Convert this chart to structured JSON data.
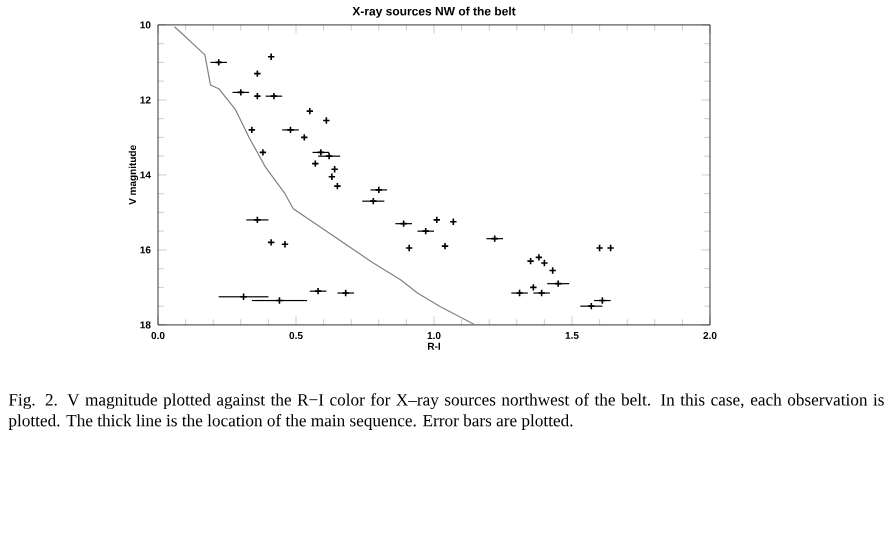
{
  "chart_data": {
    "type": "scatter",
    "title": "X-ray sources NW of the belt",
    "xlabel": "R-I",
    "ylabel": "V magnitude",
    "xlim": [
      0,
      2
    ],
    "xticks": [
      {
        "value": 0,
        "label": "0.0"
      },
      0.5,
      {
        "value": 1,
        "label": "1.0"
      },
      1.5,
      {
        "value": 2,
        "label": "2.0"
      }
    ],
    "ylim": [
      18,
      10
    ],
    "yticks": [
      10,
      12,
      14,
      16,
      18
    ],
    "grid": false,
    "series": [
      {
        "color": "#000000",
        "marker": "cross",
        "x": [
          0.22,
          0.41,
          0.36,
          0.3,
          0.36,
          0.42,
          0.55,
          0.61,
          0.34,
          0.48,
          0.53,
          0.38,
          0.59,
          0.62,
          0.57,
          0.64,
          0.63,
          0.65,
          0.8,
          0.36,
          0.41,
          0.46,
          0.78,
          0.89,
          0.91,
          0.31,
          0.44,
          0.58,
          0.68,
          0.97,
          1.01,
          1.04,
          1.07,
          1.22,
          1.35,
          1.38,
          1.4,
          1.43,
          1.45,
          1.31,
          1.36,
          1.39,
          1.57,
          1.61,
          1.6,
          1.64
        ],
        "values": [
          11.0,
          10.85,
          11.3,
          11.8,
          11.9,
          11.9,
          12.3,
          12.55,
          12.8,
          12.8,
          13.0,
          13.4,
          13.4,
          13.5,
          13.7,
          13.85,
          14.05,
          14.3,
          14.4,
          15.2,
          15.8,
          15.85,
          14.7,
          15.3,
          15.95,
          17.25,
          17.35,
          17.1,
          17.15,
          15.5,
          15.2,
          15.9,
          15.25,
          15.7,
          16.3,
          16.2,
          16.35,
          16.55,
          16.9,
          17.15,
          17.0,
          17.15,
          17.5,
          17.35,
          15.95,
          15.95
        ],
        "xerrors": [
          0.03,
          null,
          null,
          0.03,
          null,
          0.03,
          null,
          null,
          null,
          0.03,
          null,
          null,
          0.03,
          0.04,
          null,
          null,
          null,
          null,
          0.03,
          0.04,
          null,
          null,
          0.04,
          0.03,
          null,
          0.09,
          0.1,
          0.03,
          0.03,
          0.03,
          null,
          null,
          null,
          0.03,
          null,
          null,
          null,
          null,
          0.04,
          0.03,
          null,
          0.03,
          0.04,
          0.03,
          null,
          null
        ]
      },
      {
        "type": "line",
        "color": "#808080",
        "marker": "none",
        "x": [
          0.06,
          0.17,
          0.19,
          0.22,
          0.28,
          0.33,
          0.39,
          0.46,
          0.49,
          0.64,
          0.78,
          0.88,
          0.94,
          1.02,
          1.15
        ],
        "values": [
          10.05,
          10.8,
          11.6,
          11.7,
          12.25,
          13.0,
          13.8,
          14.5,
          14.9,
          15.65,
          16.35,
          16.8,
          17.15,
          17.5,
          18.0
        ]
      }
    ],
    "annotations": [
      "Fig. 2.    V magnitude plotted against the R−I color for X–ray sources northwest of the belt. In this case, each observation is plotted. The thick line is the location of the main sequence. Error bars are plotted."
    ]
  }
}
